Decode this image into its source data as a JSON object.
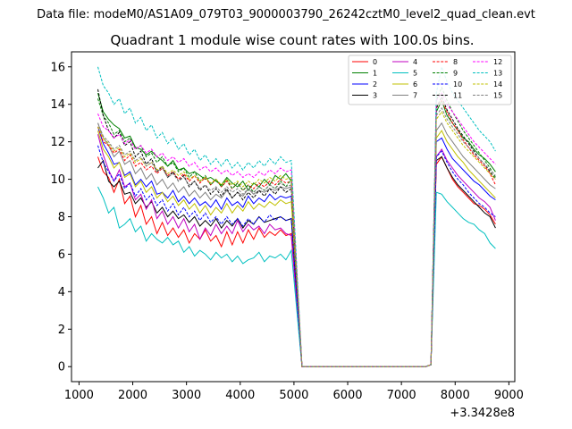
{
  "header": {
    "file_label": "Data file: modeM0/AS1A09_079T03_9000003790_26242cztM0_level2_quad_clean.evt"
  },
  "chart_data": {
    "type": "line",
    "title": "Quadrant 1 module wise count rates with 100.0s bins.",
    "xlabel": "",
    "ylabel": "",
    "x_offset_label": "+3.3428e8",
    "xlim": [
      860,
      9110
    ],
    "ylim": [
      -0.8,
      16.8
    ],
    "xticks": [
      1000,
      2000,
      3000,
      4000,
      5000,
      6000,
      7000,
      8000,
      9000
    ],
    "xtick_labels": [
      "1000",
      "2000",
      "3000",
      "4000",
      "5000",
      "6000",
      "7000",
      "8000",
      "9000"
    ],
    "yticks": [
      0,
      2,
      4,
      6,
      8,
      10,
      12,
      14,
      16
    ],
    "ytick_labels": [
      "0",
      "2",
      "4",
      "6",
      "8",
      "10",
      "12",
      "14",
      "16"
    ],
    "legend_position": "top-right",
    "note": "16 module series (0-15); values approximated from the plot. Segment 1 spans x=1350..4950 (step 100), gap at x=5150..7450 equals 0, segment 2 spans x=7550..8750 (step 100).",
    "segments": [
      {
        "x_start": 1350,
        "x_end": 4950,
        "step": 100
      },
      {
        "x_start": 5150,
        "x_end": 7450,
        "step": 100
      },
      {
        "x_start": 7550,
        "x_end": 8750,
        "step": 100
      }
    ],
    "series": [
      {
        "name": "0",
        "color": "#ff0000",
        "style": "solid",
        "seg1": [
          11.2,
          10.4,
          10.1,
          9.3,
          10.0,
          8.7,
          9.1,
          8.0,
          8.6,
          7.6,
          8.0,
          7.1,
          7.7,
          7.0,
          7.4,
          6.9,
          7.3,
          6.6,
          7.1,
          6.8,
          7.3,
          6.7,
          7.0,
          6.4,
          7.2,
          6.5,
          7.2,
          6.6,
          7.3,
          6.8,
          7.4,
          6.9,
          7.2,
          7.0,
          7.3,
          7.0,
          7.1
        ],
        "seg2": [
          0.1,
          10.8,
          11.2,
          10.6,
          10.0,
          9.6,
          9.3,
          9.0,
          8.7,
          8.6,
          8.4,
          8.1,
          7.6
        ]
      },
      {
        "name": "1",
        "color": "#008000",
        "style": "solid",
        "seg1": [
          14.6,
          13.6,
          13.2,
          12.9,
          12.7,
          12.2,
          12.3,
          11.7,
          11.6,
          11.3,
          11.5,
          11.2,
          11.0,
          10.7,
          11.0,
          10.5,
          10.6,
          10.3,
          10.4,
          10.2,
          10.0,
          10.1,
          9.9,
          9.7,
          10.1,
          9.8,
          9.6,
          9.9,
          9.4,
          9.8,
          9.6,
          10.0,
          9.7,
          10.2,
          10.0,
          10.3,
          9.9
        ],
        "seg2": [
          0.1,
          13.6,
          14.2,
          13.4,
          13.0,
          12.6,
          12.2,
          12.0,
          11.6,
          11.3,
          11.1,
          10.8,
          10.4
        ]
      },
      {
        "name": "2",
        "color": "#0000ff",
        "style": "solid",
        "seg1": [
          12.8,
          11.9,
          11.4,
          10.8,
          10.9,
          10.2,
          10.4,
          9.7,
          10.0,
          9.6,
          9.9,
          9.2,
          9.3,
          9.0,
          9.4,
          8.8,
          9.1,
          8.7,
          9.0,
          8.6,
          8.8,
          8.5,
          8.9,
          8.4,
          9.0,
          8.6,
          8.8,
          8.5,
          9.1,
          8.7,
          9.0,
          8.8,
          9.2,
          8.9,
          9.1,
          9.0,
          9.1
        ],
        "seg2": [
          0.1,
          12.0,
          12.2,
          11.6,
          11.1,
          10.8,
          10.5,
          10.2,
          9.9,
          9.7,
          9.4,
          9.1,
          8.9
        ]
      },
      {
        "name": "3",
        "color": "#000000",
        "style": "solid",
        "seg1": [
          10.6,
          11.0,
          9.9,
          9.6,
          9.9,
          9.2,
          9.3,
          8.7,
          9.0,
          8.5,
          8.8,
          8.2,
          8.5,
          8.0,
          8.3,
          7.9,
          8.1,
          7.7,
          8.0,
          7.5,
          7.8,
          7.5,
          7.9,
          7.4,
          7.8,
          7.5,
          7.9,
          7.4,
          7.8,
          7.6,
          8.0,
          7.7,
          7.8,
          7.9,
          8.0,
          7.8,
          7.9
        ],
        "seg2": [
          0.1,
          11.0,
          11.2,
          10.6,
          10.1,
          9.7,
          9.4,
          9.1,
          8.8,
          8.5,
          8.2,
          8.0,
          7.4
        ]
      },
      {
        "name": "4",
        "color": "#c000c0",
        "style": "solid",
        "seg1": [
          12.4,
          11.3,
          10.5,
          9.9,
          10.5,
          9.6,
          9.8,
          8.9,
          9.2,
          8.4,
          8.9,
          7.9,
          8.3,
          7.6,
          8.0,
          7.4,
          7.9,
          7.2,
          7.6,
          6.8,
          7.4,
          7.0,
          7.6,
          7.1,
          7.5,
          7.1,
          7.8,
          7.2,
          7.6,
          7.3,
          7.5,
          7.1,
          7.6,
          7.3,
          7.4,
          7.1,
          7.0
        ],
        "seg2": [
          0.1,
          11.2,
          11.6,
          11.0,
          10.6,
          10.2,
          9.9,
          9.6,
          9.3,
          9.0,
          8.8,
          8.5,
          7.8
        ]
      },
      {
        "name": "5",
        "color": "#00c0c0",
        "style": "solid",
        "seg1": [
          9.6,
          9.0,
          8.2,
          8.5,
          7.4,
          7.6,
          7.9,
          7.2,
          7.5,
          6.7,
          7.1,
          6.8,
          6.6,
          6.9,
          6.5,
          6.7,
          6.1,
          6.4,
          5.9,
          6.2,
          6.0,
          5.7,
          6.1,
          5.8,
          6.0,
          5.6,
          5.9,
          5.5,
          5.7,
          5.8,
          6.1,
          5.6,
          5.9,
          5.8,
          6.0,
          5.7,
          6.2
        ],
        "seg2": [
          0.1,
          9.3,
          9.2,
          8.8,
          8.5,
          8.2,
          7.9,
          7.7,
          7.6,
          7.3,
          7.1,
          6.6,
          6.3
        ]
      },
      {
        "name": "6",
        "color": "#c0c000",
        "style": "solid",
        "seg1": [
          12.6,
          11.6,
          11.2,
          10.6,
          10.9,
          10.1,
          10.3,
          9.6,
          9.9,
          9.3,
          9.6,
          9.0,
          9.3,
          8.8,
          9.1,
          8.6,
          8.9,
          8.4,
          8.7,
          8.2,
          8.6,
          8.1,
          8.5,
          8.2,
          8.7,
          8.2,
          8.6,
          8.3,
          8.8,
          8.4,
          8.7,
          8.5,
          8.8,
          8.6,
          8.9,
          8.7,
          8.8
        ],
        "seg2": [
          0.1,
          12.2,
          12.6,
          12.0,
          11.6,
          11.2,
          10.9,
          10.5,
          10.2,
          9.9,
          9.6,
          9.3,
          9.0
        ]
      },
      {
        "name": "7",
        "color": "#808080",
        "style": "solid",
        "seg1": [
          13.0,
          12.2,
          11.8,
          11.2,
          11.5,
          10.8,
          11.0,
          10.3,
          10.6,
          10.0,
          10.3,
          9.7,
          10.0,
          9.5,
          9.8,
          9.3,
          9.6,
          9.1,
          9.4,
          9.0,
          9.3,
          8.9,
          9.2,
          9.0,
          9.4,
          9.0,
          9.3,
          9.1,
          9.5,
          9.2,
          9.4,
          9.3,
          9.5,
          9.4,
          9.6,
          9.5,
          9.6
        ],
        "seg2": [
          0.1,
          12.6,
          13.0,
          12.4,
          12.0,
          11.6,
          11.2,
          10.9,
          10.6,
          10.3,
          10.0,
          9.7,
          9.5
        ]
      },
      {
        "name": "8",
        "color": "#ff0000",
        "style": "dashed",
        "seg1": [
          12.8,
          12.0,
          11.8,
          11.4,
          11.6,
          11.0,
          11.3,
          10.7,
          10.9,
          10.5,
          10.7,
          10.3,
          10.6,
          10.2,
          10.4,
          10.0,
          10.3,
          9.9,
          10.2,
          9.8,
          10.1,
          9.7,
          10.0,
          9.6,
          9.9,
          9.5,
          9.8,
          9.4,
          9.7,
          9.5,
          9.8,
          9.6,
          9.9,
          9.7,
          10.0,
          9.8,
          9.9
        ],
        "seg2": [
          0.1,
          13.8,
          14.2,
          13.6,
          13.0,
          12.6,
          12.1,
          11.7,
          11.3,
          11.0,
          10.7,
          10.3,
          9.7
        ]
      },
      {
        "name": "9",
        "color": "#008000",
        "style": "dashed",
        "seg1": [
          14.3,
          13.4,
          13.0,
          12.4,
          12.6,
          12.0,
          12.2,
          11.6,
          11.8,
          11.2,
          11.4,
          10.9,
          11.2,
          10.7,
          10.9,
          10.4,
          10.6,
          10.1,
          10.4,
          9.9,
          10.2,
          9.7,
          10.0,
          9.6,
          10.0,
          9.5,
          9.8,
          9.4,
          9.7,
          9.3,
          9.6,
          9.4,
          9.7,
          9.5,
          9.9,
          9.6,
          10.0
        ],
        "seg2": [
          0.1,
          14.2,
          14.9,
          14.2,
          13.6,
          13.1,
          12.6,
          12.2,
          11.8,
          11.4,
          11.0,
          10.6,
          10.1
        ]
      },
      {
        "name": "10",
        "color": "#0000ff",
        "style": "dashed",
        "seg1": [
          11.8,
          10.9,
          10.4,
          9.9,
          10.3,
          9.5,
          9.8,
          9.1,
          9.5,
          8.9,
          9.2,
          8.6,
          8.9,
          8.3,
          8.7,
          8.1,
          8.5,
          8.0,
          8.3,
          7.8,
          8.2,
          7.7,
          8.0,
          7.6,
          8.0,
          7.6,
          7.9,
          7.5,
          7.9,
          7.6,
          8.0,
          7.7,
          8.1,
          7.8,
          8.0,
          7.8,
          7.9
        ],
        "seg2": [
          0.1,
          11.2,
          11.5,
          10.9,
          10.4,
          10.0,
          9.7,
          9.3,
          9.0,
          8.7,
          8.5,
          8.2,
          8.0
        ]
      },
      {
        "name": "11",
        "color": "#000000",
        "style": "dashed",
        "seg1": [
          14.8,
          13.4,
          12.6,
          12.2,
          12.5,
          11.8,
          12.0,
          11.2,
          11.5,
          10.8,
          11.1,
          10.4,
          10.7,
          10.1,
          10.4,
          9.9,
          10.2,
          9.6,
          9.9,
          9.4,
          9.7,
          9.2,
          9.5,
          9.1,
          9.5,
          9.0,
          9.3,
          8.9,
          9.3,
          9.0,
          9.4,
          9.1,
          9.5,
          9.2,
          9.6,
          9.3,
          9.5
        ],
        "seg2": [
          0.1,
          13.8,
          14.4,
          13.7,
          13.2,
          12.7,
          12.3,
          11.9,
          11.5,
          11.1,
          10.8,
          10.4,
          10.0
        ]
      },
      {
        "name": "12",
        "color": "#ff00ff",
        "style": "dashed",
        "seg1": [
          13.5,
          12.8,
          12.6,
          12.2,
          12.4,
          11.9,
          12.1,
          11.6,
          11.8,
          11.4,
          11.6,
          11.2,
          11.4,
          11.0,
          11.2,
          10.9,
          11.1,
          10.7,
          10.9,
          10.5,
          10.7,
          10.4,
          10.6,
          10.3,
          10.5,
          10.2,
          10.4,
          10.1,
          10.3,
          10.1,
          10.4,
          10.2,
          10.5,
          10.3,
          10.6,
          10.4,
          10.5
        ],
        "seg2": [
          0.1,
          14.2,
          14.6,
          14.0,
          13.6,
          13.2,
          12.8,
          12.4,
          12.0,
          11.7,
          11.4,
          11.1,
          10.8
        ]
      },
      {
        "name": "13",
        "color": "#00c0c0",
        "style": "dashed",
        "seg1": [
          16.0,
          15.0,
          14.6,
          14.0,
          14.3,
          13.5,
          13.8,
          13.0,
          13.3,
          12.6,
          12.9,
          12.2,
          12.5,
          11.9,
          12.2,
          11.6,
          11.9,
          11.3,
          11.6,
          11.0,
          11.3,
          10.8,
          11.1,
          10.7,
          11.1,
          10.6,
          10.9,
          10.5,
          10.9,
          10.6,
          11.0,
          10.7,
          11.1,
          10.8,
          11.2,
          10.9,
          11.0
        ],
        "seg2": [
          0.1,
          14.6,
          16.0,
          15.2,
          14.6,
          14.2,
          13.8,
          13.4,
          13.0,
          12.6,
          12.3,
          12.0,
          11.5
        ]
      },
      {
        "name": "14",
        "color": "#c0c000",
        "style": "dashed",
        "seg1": [
          12.8,
          12.2,
          11.9,
          11.5,
          11.7,
          11.2,
          11.4,
          10.9,
          11.1,
          10.7,
          10.9,
          10.5,
          10.7,
          10.3,
          10.5,
          10.2,
          10.4,
          10.0,
          10.2,
          9.9,
          10.1,
          9.8,
          10.0,
          9.7,
          10.0,
          9.7,
          9.9,
          9.6,
          9.9,
          9.7,
          10.0,
          9.8,
          10.1,
          9.9,
          10.2,
          10.0,
          10.1
        ],
        "seg2": [
          0.1,
          13.2,
          13.6,
          13.0,
          12.6,
          12.2,
          11.8,
          11.5,
          11.2,
          10.9,
          10.6,
          10.3,
          10.0
        ]
      },
      {
        "name": "15",
        "color": "#808080",
        "style": "dashed",
        "seg1": [
          13.0,
          12.3,
          12.0,
          11.6,
          11.8,
          11.3,
          11.5,
          11.0,
          11.2,
          10.7,
          10.9,
          10.4,
          10.6,
          10.1,
          10.3,
          9.9,
          10.1,
          9.7,
          9.9,
          9.5,
          9.7,
          9.4,
          9.6,
          9.3,
          9.6,
          9.3,
          9.5,
          9.2,
          9.5,
          9.3,
          9.6,
          9.4,
          9.7,
          9.5,
          9.8,
          9.6,
          9.7
        ],
        "seg2": [
          0.1,
          13.4,
          13.8,
          13.2,
          12.8,
          12.4,
          12.0,
          11.7,
          11.4,
          11.1,
          10.8,
          10.5,
          10.2
        ]
      }
    ]
  }
}
